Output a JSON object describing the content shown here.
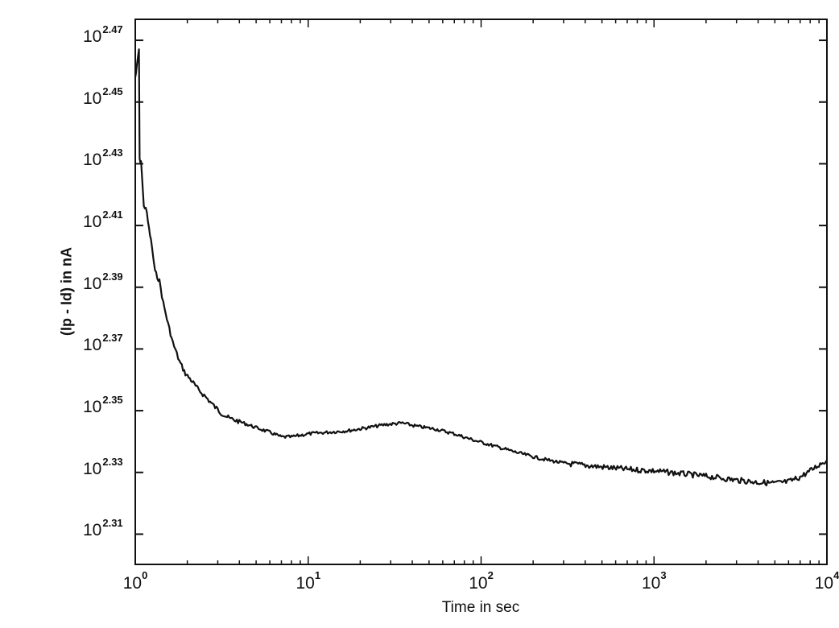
{
  "chart_data": {
    "type": "line",
    "title": "",
    "xlabel": "Time in sec",
    "ylabel": "(Ip - Id) in nA",
    "xscale": "log",
    "yscale": "log",
    "xlim": [
      1,
      10000
    ],
    "ylim_exponent": [
      2.3002,
      2.4768
    ],
    "grid": false,
    "legend": null,
    "x_ticks": [
      {
        "base": "10",
        "exp": "0",
        "value": 1
      },
      {
        "base": "10",
        "exp": "1",
        "value": 10
      },
      {
        "base": "10",
        "exp": "2",
        "value": 100
      },
      {
        "base": "10",
        "exp": "3",
        "value": 1000
      },
      {
        "base": "10",
        "exp": "4",
        "value": 10000
      }
    ],
    "y_ticks": [
      {
        "base": "10",
        "exp": "2.47",
        "value": 2.47
      },
      {
        "base": "10",
        "exp": "2.45",
        "value": 2.45
      },
      {
        "base": "10",
        "exp": "2.43",
        "value": 2.43
      },
      {
        "base": "10",
        "exp": "2.41",
        "value": 2.41
      },
      {
        "base": "10",
        "exp": "2.39",
        "value": 2.39
      },
      {
        "base": "10",
        "exp": "2.37",
        "value": 2.37
      },
      {
        "base": "10",
        "exp": "2.35",
        "value": 2.35
      },
      {
        "base": "10",
        "exp": "2.33",
        "value": 2.33
      },
      {
        "base": "10",
        "exp": "2.31",
        "value": 2.31
      }
    ],
    "series": [
      {
        "name": "Ip - Id",
        "color": "#111111",
        "x": [
          1.0,
          1.02,
          1.05,
          1.06,
          1.08,
          1.12,
          1.15,
          1.2,
          1.25,
          1.3,
          1.38,
          1.45,
          1.55,
          1.65,
          1.8,
          1.95,
          2.1,
          2.3,
          2.5,
          2.8,
          3.1,
          3.5,
          4.0,
          5.0,
          6.0,
          7.0,
          8.0,
          10.0,
          13.0,
          17.0,
          22.0,
          28.0,
          35.0,
          42.0,
          55.0,
          70.0,
          90.0,
          120.0,
          160.0,
          220.0,
          300.0,
          450.0,
          700.0,
          1000.0,
          1500.0,
          2200.0,
          3000.0,
          4000.0,
          5000.0,
          6000.0,
          7000.0,
          8000.0,
          9000.0,
          10000.0
        ],
        "y_exponent": [
          2.458,
          2.461,
          2.467,
          2.431,
          2.431,
          2.416,
          2.416,
          2.409,
          2.403,
          2.395,
          2.392,
          2.385,
          2.378,
          2.372,
          2.366,
          2.362,
          2.36,
          2.357,
          2.355,
          2.352,
          2.3495,
          2.3475,
          2.3465,
          2.3445,
          2.343,
          2.3415,
          2.3415,
          2.3425,
          2.343,
          2.3435,
          2.3445,
          2.3455,
          2.346,
          2.345,
          2.344,
          2.3425,
          2.3405,
          2.3385,
          2.3365,
          2.3345,
          2.333,
          2.332,
          2.331,
          2.3305,
          2.3295,
          2.3285,
          2.3275,
          2.3268,
          2.3265,
          2.327,
          2.3285,
          2.3305,
          2.3325,
          2.334
        ]
      }
    ]
  }
}
